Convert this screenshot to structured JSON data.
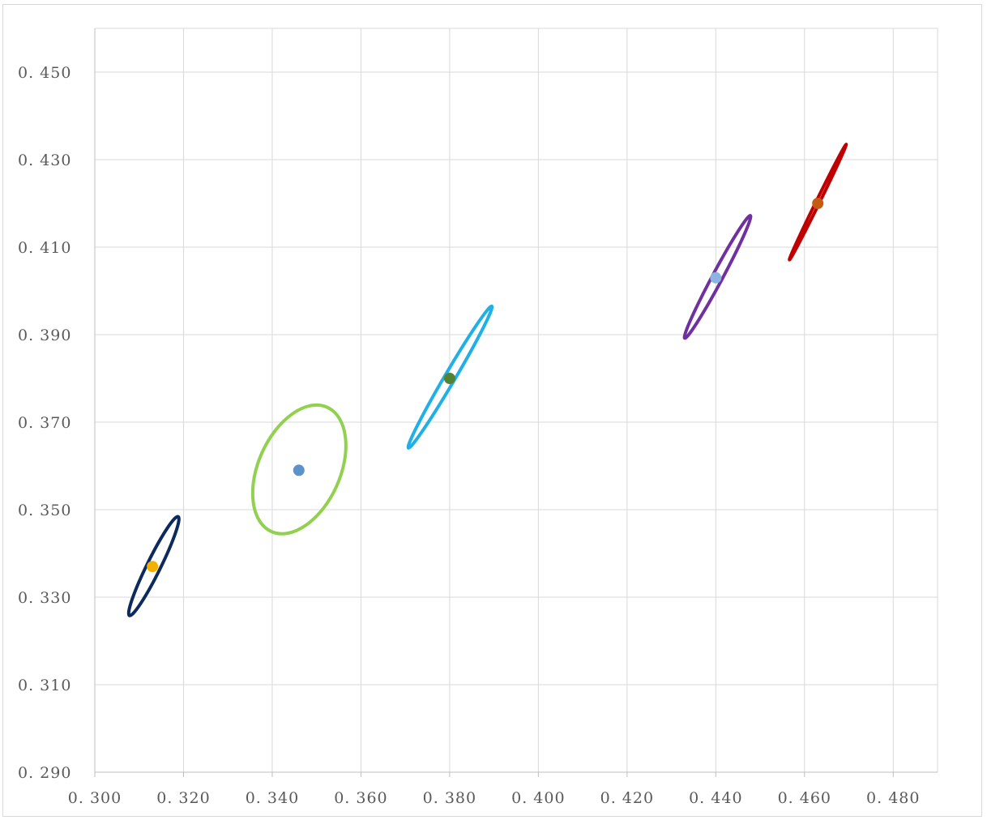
{
  "chart_data": {
    "type": "scatter",
    "title": "",
    "xlabel": "",
    "ylabel": "",
    "xlim": [
      0.3,
      0.49
    ],
    "ylim": [
      0.29,
      0.46
    ],
    "x_ticks": [
      "0. 300",
      "0. 320",
      "0. 340",
      "0. 360",
      "0. 380",
      "0. 400",
      "0. 420",
      "0. 440",
      "0. 460",
      "0. 480"
    ],
    "x_tick_values": [
      0.3,
      0.32,
      0.34,
      0.36,
      0.38,
      0.4,
      0.42,
      0.44,
      0.46,
      0.48
    ],
    "y_ticks": [
      "0. 290",
      "0. 310",
      "0. 330",
      "0. 350",
      "0. 370",
      "0. 390",
      "0. 410",
      "0. 430",
      "0. 450"
    ],
    "y_tick_values": [
      0.29,
      0.31,
      0.33,
      0.35,
      0.37,
      0.39,
      0.41,
      0.43,
      0.45
    ],
    "x_gridlines": [
      0.3,
      0.32,
      0.34,
      0.36,
      0.38,
      0.4,
      0.42,
      0.44,
      0.46,
      0.48,
      0.49
    ],
    "y_gridlines": [
      0.31,
      0.33,
      0.35,
      0.37,
      0.39,
      0.41,
      0.43,
      0.45,
      0.46
    ],
    "grid": true,
    "legend": "none",
    "series": [
      {
        "points": [
          {
            "x": 0.313,
            "y": 0.337
          }
        ],
        "point_color": "#f2b100",
        "ellipse": {
          "cx": 0.3133,
          "cy": 0.3371,
          "points": [
            [
              0.3188,
              0.3484
            ],
            [
              0.3082,
              0.3259
            ]
          ]
        },
        "ellipse_color": "#0d2a5e"
      },
      {
        "points": [
          {
            "x": 0.346,
            "y": 0.359
          }
        ],
        "point_color": "#5b92c9",
        "ellipse": {
          "cx": 0.3461,
          "cy": 0.3592,
          "points": [
            [
              0.3524,
              0.3734
            ],
            [
              0.3397,
              0.3449
            ]
          ]
        },
        "ellipse_color": "#92d050"
      },
      {
        "points": [
          {
            "x": 0.38,
            "y": 0.38
          }
        ],
        "point_color": "#548235",
        "ellipse": {
          "cx": 0.3801,
          "cy": 0.3803,
          "points": [
            [
              0.3895,
              0.3965
            ],
            [
              0.3708,
              0.3641
            ]
          ]
        },
        "ellipse_color": "#1eb0e6"
      },
      {
        "points": [
          {
            "x": 0.44,
            "y": 0.403
          }
        ],
        "point_color": "#8db3e0",
        "ellipse": {
          "cx": 0.4404,
          "cy": 0.4032,
          "points": [
            [
              0.4478,
              0.4172
            ],
            [
              0.4331,
              0.3892
            ]
          ]
        },
        "ellipse_color": "#7030a0"
      },
      {
        "points": [
          {
            "x": 0.463,
            "y": 0.42
          }
        ],
        "point_color": "#c55a11",
        "ellipse": {
          "cx": 0.463,
          "cy": 0.4203,
          "points": [
            [
              0.4694,
              0.4335
            ],
            [
              0.4566,
              0.4072
            ]
          ]
        },
        "ellipse_color": "#c00000"
      }
    ]
  }
}
